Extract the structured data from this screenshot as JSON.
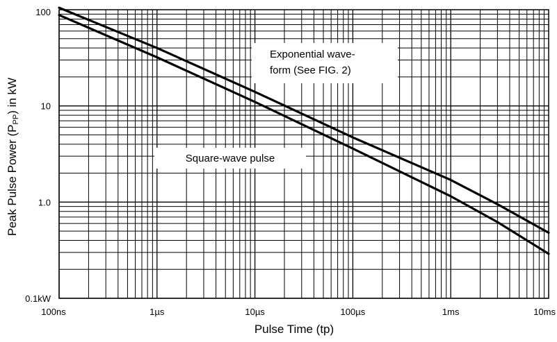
{
  "chart_data": {
    "type": "line",
    "title": "",
    "xlabel": "Pulse Time (tp)",
    "ylabel": "Peak Pulse Power (P",
    "ylabel_sub": "PP",
    "ylabel_tail": ") in kW",
    "x_scale": "log",
    "y_scale": "log",
    "xlim_seconds": [
      1e-07,
      0.01
    ],
    "ylim_kw": [
      0.1,
      100
    ],
    "x_ticks": [
      {
        "value_s": 1e-07,
        "label": "100ns"
      },
      {
        "value_s": 1e-06,
        "label": "1µs"
      },
      {
        "value_s": 1e-05,
        "label": "10µs"
      },
      {
        "value_s": 0.0001,
        "label": "100µs"
      },
      {
        "value_s": 0.001,
        "label": "1ms"
      },
      {
        "value_s": 0.01,
        "label": "10ms"
      }
    ],
    "y_ticks": [
      {
        "value": 100,
        "label": "100"
      },
      {
        "value": 10,
        "label": "10"
      },
      {
        "value": 1,
        "label": "1.0"
      },
      {
        "value": 0.1,
        "label": "0.1kW"
      }
    ],
    "grid": true,
    "series": [
      {
        "x_s": [
          1e-07,
          1e-06,
          1e-05,
          0.0001,
          0.001,
          0.003,
          0.01
        ],
        "y_kw": [
          105,
          40,
          14,
          4.7,
          1.7,
          0.95,
          0.48
        ]
      },
      {
        "x_s": [
          1e-07,
          1e-06,
          1e-05,
          0.0001,
          0.001,
          0.003,
          0.01
        ],
        "y_kw": [
          88,
          32,
          11,
          3.6,
          1.15,
          0.62,
          0.29
        ]
      }
    ],
    "annotations": [
      {
        "id": "exp",
        "lines": [
          "Exponential wave-",
          "form (See FIG. 2)"
        ]
      },
      {
        "id": "sq",
        "lines": [
          "Square-wave pulse"
        ]
      }
    ]
  }
}
